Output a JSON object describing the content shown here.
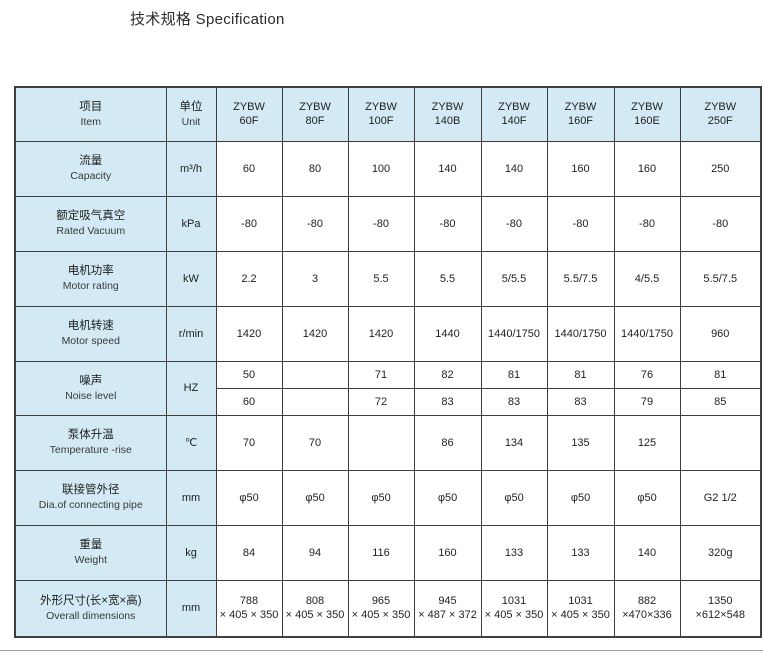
{
  "page": {
    "title": "技术规格 Specification"
  },
  "table": {
    "header": {
      "item": {
        "zh": "项目",
        "en": "Item"
      },
      "unit": {
        "zh": "单位",
        "en": "Unit"
      },
      "models": [
        {
          "brand": "ZYBW",
          "code": "60F"
        },
        {
          "brand": "ZYBW",
          "code": "80F"
        },
        {
          "brand": "ZYBW",
          "code": "100F"
        },
        {
          "brand": "ZYBW",
          "code": "140B"
        },
        {
          "brand": "ZYBW",
          "code": "140F"
        },
        {
          "brand": "ZYBW",
          "code": "160F"
        },
        {
          "brand": "ZYBW",
          "code": "160E"
        },
        {
          "brand": "ZYBW",
          "code": "250F"
        }
      ]
    },
    "rows": [
      {
        "zh": "流量",
        "en": "Capacity",
        "unit": "m³/h",
        "values": [
          "60",
          "80",
          "100",
          "140",
          "140",
          "160",
          "160",
          "250"
        ]
      },
      {
        "zh": "额定吸气真空",
        "en": "Rated Vacuum",
        "unit": "kPa",
        "values": [
          "-80",
          "-80",
          "-80",
          "-80",
          "-80",
          "-80",
          "-80",
          "-80"
        ]
      },
      {
        "zh": "电机功率",
        "en": "Motor rating",
        "unit": "kW",
        "values": [
          "2.2",
          "3",
          "5.5",
          "5.5",
          "5/5.5",
          "5.5/7.5",
          "4/5.5",
          "5.5/7.5"
        ]
      },
      {
        "zh": "电机转速",
        "en": "Motor speed",
        "unit": "r/min",
        "values": [
          "1420",
          "1420",
          "1420",
          "1440",
          "1440/1750",
          "1440/1750",
          "1440/1750",
          "960"
        ]
      },
      {
        "zh": "噪声",
        "en": "Noise level",
        "unit": "HZ",
        "values_top": [
          "50",
          "",
          "71",
          "82",
          "81",
          "81",
          "76",
          "81"
        ],
        "values_bottom": [
          "60",
          "",
          "72",
          "83",
          "83",
          "83",
          "79",
          "85"
        ]
      },
      {
        "zh": "泵体升温",
        "en": "Temperature -rise",
        "unit": "℃",
        "values": [
          "70",
          "70",
          "",
          "86",
          "134",
          "135",
          "125",
          ""
        ]
      },
      {
        "zh": "联接管外径",
        "en": "Dia.of connecting pipe",
        "unit": "mm",
        "values": [
          "φ50",
          "φ50",
          "φ50",
          "φ50",
          "φ50",
          "φ50",
          "φ50",
          "G2 1/2"
        ]
      },
      {
        "zh": "重量",
        "en": "Weight",
        "unit": "kg",
        "values": [
          "84",
          "94",
          "116",
          "160",
          "133",
          "133",
          "140",
          "320g"
        ]
      },
      {
        "zh": "外形尺寸(长×宽×高)",
        "en": "Overall dimensions",
        "unit": "mm",
        "dims": [
          {
            "l1": "788",
            "l2": "× 405 × 350"
          },
          {
            "l1": "808",
            "l2": "× 405 × 350"
          },
          {
            "l1": "965",
            "l2": "× 405 × 350"
          },
          {
            "l1": "945",
            "l2": "× 487 × 372"
          },
          {
            "l1": "1031",
            "l2": "× 405 × 350"
          },
          {
            "l1": "1031",
            "l2": "× 405 × 350"
          },
          {
            "l1": "882",
            "l2": "×470×336"
          },
          {
            "l1": "1350",
            "l2": "×612×548"
          }
        ]
      }
    ]
  }
}
